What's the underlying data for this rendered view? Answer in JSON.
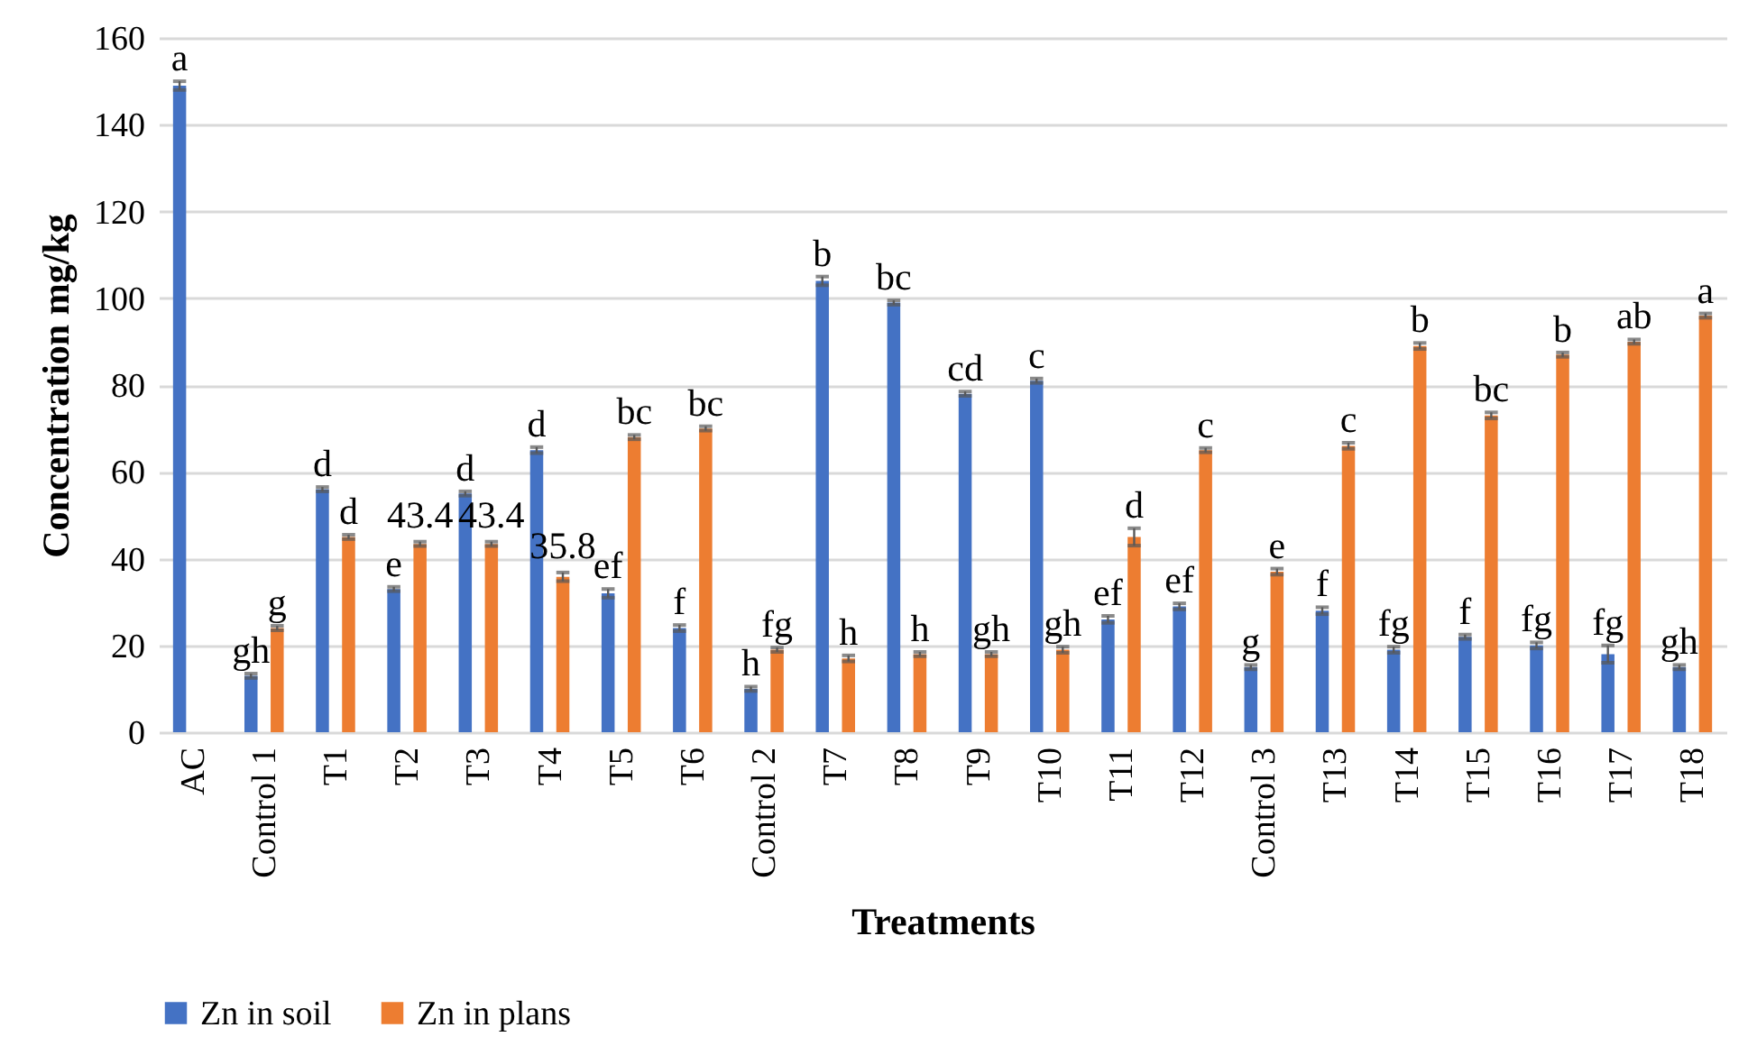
{
  "chart_data": {
    "type": "bar",
    "xlabel": "Treatments",
    "ylabel": "Concentration mg/kg",
    "categories": [
      "AC",
      "Control 1",
      "T1",
      "T2",
      "T3",
      "T4",
      "T5",
      "T6",
      "Control 2",
      "T7",
      "T8",
      "T9",
      "T10",
      "T11",
      "T12",
      "Control 3",
      "T13",
      "T14",
      "T15",
      "T16",
      "T17",
      "T18"
    ],
    "series": [
      {
        "name": "Zn in soil",
        "color": "#4472c4",
        "values": [
          149,
          13,
          56,
          33,
          55,
          65,
          32,
          24,
          10,
          104,
          99,
          78,
          81,
          26,
          29,
          15,
          28,
          19,
          22,
          20,
          18,
          15
        ],
        "errors": [
          1,
          0.5,
          0.5,
          0.5,
          0.5,
          0.7,
          1,
          0.7,
          0.5,
          1,
          0.5,
          0.5,
          0.5,
          0.8,
          0.7,
          0.5,
          0.8,
          0.7,
          0.5,
          0.7,
          2,
          0.5
        ]
      },
      {
        "name": "Zn in plans",
        "color": "#ed7d31",
        "values": [
          null,
          24,
          45,
          43.4,
          43.4,
          35.8,
          68,
          70,
          19,
          17,
          18,
          18,
          19,
          45,
          65,
          37,
          66,
          89,
          73,
          87,
          90,
          96
        ],
        "errors": [
          null,
          0.5,
          0.5,
          0.5,
          0.5,
          1,
          0.5,
          0.5,
          0.5,
          0.7,
          0.5,
          0.5,
          0.7,
          2,
          0.5,
          0.7,
          0.7,
          0.7,
          0.7,
          0.5,
          0.5,
          0.5
        ],
        "value_labels": [
          null,
          null,
          null,
          "43.4",
          "43.4",
          "35.8",
          null,
          null,
          null,
          null,
          null,
          null,
          null,
          null,
          null,
          null,
          null,
          null,
          null,
          null,
          null,
          null
        ]
      }
    ],
    "ylim": [
      0,
      160
    ],
    "yticks": [
      0,
      20,
      40,
      60,
      80,
      100,
      120,
      140,
      160
    ],
    "grid": "y",
    "legend": "bottom",
    "annotations": [
      {
        "text": "a",
        "x": "AC",
        "y": 150
      },
      {
        "text": "gh",
        "x": "Control 1",
        "y": 13.5
      },
      {
        "text": "g",
        "x": "Control 1",
        "y": 24.5
      },
      {
        "text": "d",
        "x": "T1",
        "y": 56.5
      },
      {
        "text": "d",
        "x": "T1",
        "y": 45.5
      },
      {
        "text": "e",
        "x": "T2",
        "y": 33.5
      },
      {
        "text": "d",
        "x": "T3",
        "y": 55.5
      },
      {
        "text": "d",
        "x": "T4",
        "y": 65.7
      },
      {
        "text": "ef",
        "x": "T5",
        "y": 33
      },
      {
        "text": "bc",
        "x": "T5",
        "y": 68.5
      },
      {
        "text": "f",
        "x": "T6",
        "y": 24.7
      },
      {
        "text": "bc",
        "x": "T6",
        "y": 70.5
      },
      {
        "text": "h",
        "x": "Control 2",
        "y": 10.5
      },
      {
        "text": "fg",
        "x": "Control 2",
        "y": 19.5
      },
      {
        "text": "b",
        "x": "T7",
        "y": 105
      },
      {
        "text": "h",
        "x": "T7",
        "y": 17.7
      },
      {
        "text": "bc",
        "x": "T8",
        "y": 99.5
      },
      {
        "text": "h",
        "x": "T8",
        "y": 18.5
      },
      {
        "text": "cd",
        "x": "T9",
        "y": 78.5
      },
      {
        "text": "gh",
        "x": "T9",
        "y": 18.5
      },
      {
        "text": "c",
        "x": "T10",
        "y": 81.5
      },
      {
        "text": "gh",
        "x": "T10",
        "y": 19.7
      },
      {
        "text": "ef",
        "x": "T11",
        "y": 26.8
      },
      {
        "text": "d",
        "x": "T11",
        "y": 47
      },
      {
        "text": "ef",
        "x": "T12",
        "y": 29.7
      },
      {
        "text": "c",
        "x": "T12",
        "y": 65.5
      },
      {
        "text": "g",
        "x": "Control 3",
        "y": 15.5
      },
      {
        "text": "e",
        "x": "Control 3",
        "y": 37.7
      },
      {
        "text": "f",
        "x": "T13",
        "y": 28.8
      },
      {
        "text": "c",
        "x": "T13",
        "y": 66.7
      },
      {
        "text": "fg",
        "x": "T14",
        "y": 19.7
      },
      {
        "text": "b",
        "x": "T14",
        "y": 89.7
      },
      {
        "text": "f",
        "x": "T15",
        "y": 22.5
      },
      {
        "text": "bc",
        "x": "T15",
        "y": 73.7
      },
      {
        "text": "fg",
        "x": "T16",
        "y": 20.7
      },
      {
        "text": "b",
        "x": "T16",
        "y": 87.5
      },
      {
        "text": "fg",
        "x": "T17",
        "y": 20
      },
      {
        "text": "ab",
        "x": "T17",
        "y": 90.5
      },
      {
        "text": "gh",
        "x": "T18",
        "y": 15.5
      },
      {
        "text": "a",
        "x": "T18",
        "y": 96.5
      }
    ]
  }
}
